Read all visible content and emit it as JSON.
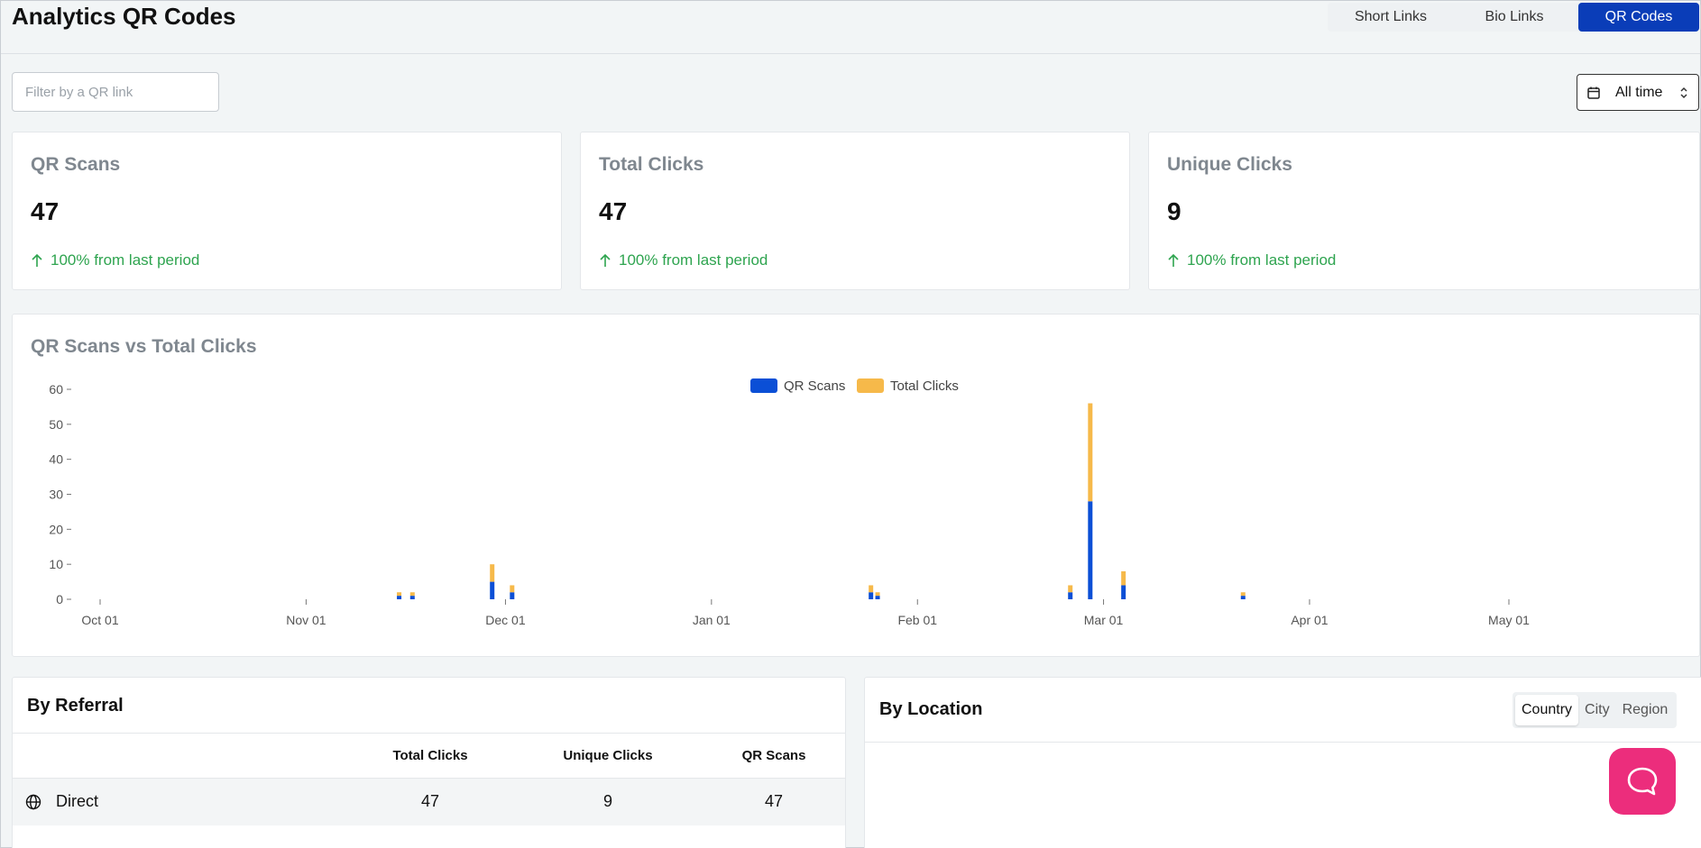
{
  "header": {
    "title": "Analytics QR Codes",
    "tabs": [
      {
        "label": "Short Links"
      },
      {
        "label": "Bio Links"
      },
      {
        "label": "QR Codes"
      }
    ]
  },
  "filter": {
    "placeholder": "Filter by a QR link"
  },
  "date_range": {
    "label": "All time"
  },
  "stats": [
    {
      "title": "QR Scans",
      "value": "47",
      "trend": "100% from last period"
    },
    {
      "title": "Total Clicks",
      "value": "47",
      "trend": "100% from last period"
    },
    {
      "title": "Unique Clicks",
      "value": "9",
      "trend": "100% from last period"
    }
  ],
  "chart": {
    "title": "QR Scans vs Total Clicks"
  },
  "chart_data": {
    "type": "bar",
    "stacked": true,
    "legend": "top-center",
    "grid": false,
    "y_ticks": [
      0,
      10,
      20,
      30,
      40,
      50,
      60
    ],
    "ylim": [
      0,
      60
    ],
    "x_ticks": [
      "Oct 01",
      "Nov 01",
      "Dec 01",
      "Jan 01",
      "Feb 01",
      "Mar 01",
      "Apr 01",
      "May 01"
    ],
    "x": [
      "Nov 15",
      "Nov 17",
      "Nov 29",
      "Dec 02",
      "Jan 25",
      "Jan 26",
      "Feb 24",
      "Feb 27",
      "Mar 04",
      "Mar 22"
    ],
    "series": [
      {
        "name": "QR Scans",
        "color": "#0b4fd6",
        "values": [
          1,
          1,
          5,
          2,
          2,
          1,
          2,
          28,
          4,
          1
        ]
      },
      {
        "name": "Total Clicks",
        "color": "#f6b94a",
        "values": [
          1,
          1,
          5,
          2,
          2,
          1,
          2,
          28,
          4,
          1
        ]
      }
    ]
  },
  "referral": {
    "title": "By Referral",
    "columns": [
      "Total Clicks",
      "Unique Clicks",
      "QR Scans"
    ],
    "rows": [
      {
        "name": "Direct",
        "total_clicks": "47",
        "unique_clicks": "9",
        "qr_scans": "47"
      }
    ]
  },
  "location": {
    "title": "By Location",
    "tabs": [
      {
        "label": "Country"
      },
      {
        "label": "City"
      },
      {
        "label": "Region"
      }
    ]
  },
  "colors": {
    "primary": "#0a3db8",
    "positive": "#2ea44f",
    "help": "#ec2d7c"
  }
}
